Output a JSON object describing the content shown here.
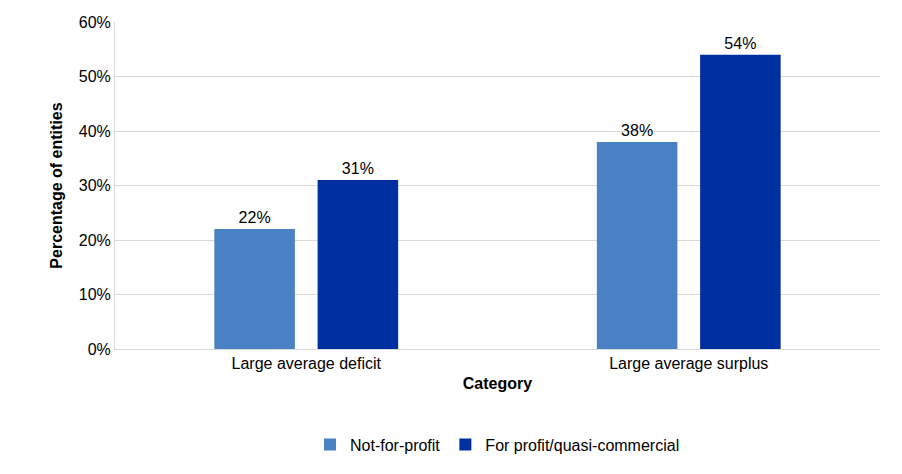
{
  "chart_data": {
    "type": "bar",
    "x_label": "Category",
    "y_label": "Percentage of entities",
    "categories": [
      "Large average deficit",
      "Large average surplus"
    ],
    "series": [
      {
        "name": "Not-for-profit",
        "color": "#4a80c4",
        "values": [
          22,
          38
        ],
        "value_labels": [
          "22%",
          "38%"
        ]
      },
      {
        "name": "For profit/quasi-commercial",
        "color": "#0030a0",
        "values": [
          31,
          54
        ],
        "value_labels": [
          "31%",
          "54%"
        ]
      }
    ],
    "ylim": [
      0,
      60
    ],
    "yticks": [
      {
        "value": 0,
        "label": "0%"
      },
      {
        "value": 10,
        "label": "10%"
      },
      {
        "value": 20,
        "label": "20%"
      },
      {
        "value": 30,
        "label": "30%"
      },
      {
        "value": 40,
        "label": "40%"
      },
      {
        "value": 50,
        "label": "50%"
      },
      {
        "value": 60,
        "label": "60%"
      }
    ],
    "grid": true,
    "data_labels": true,
    "legend": "bottom"
  }
}
